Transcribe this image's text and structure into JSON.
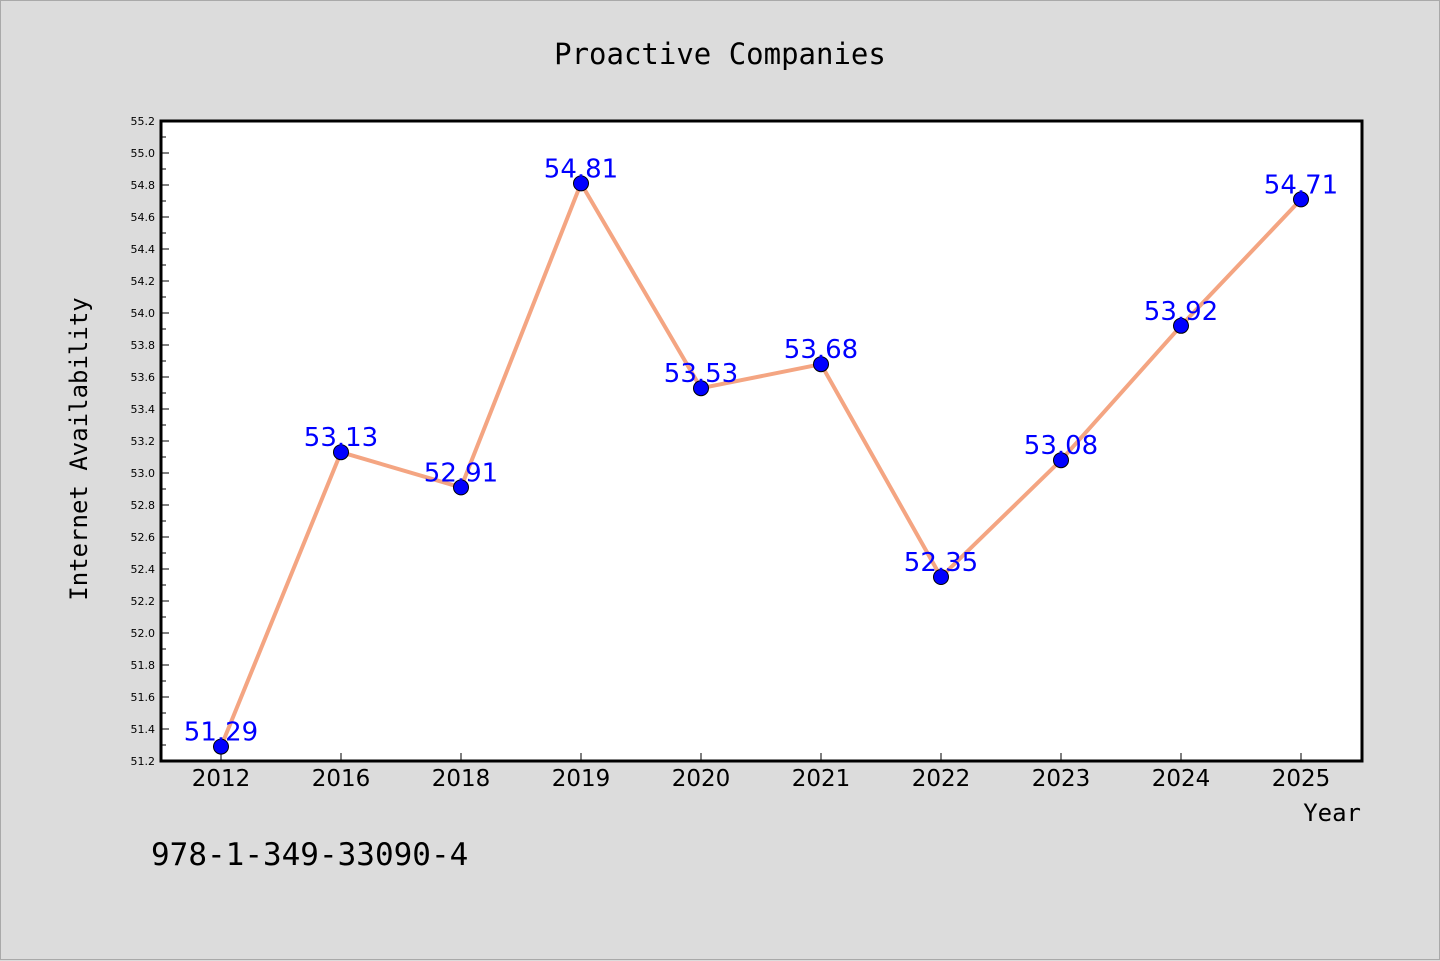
{
  "chart_data": {
    "type": "line",
    "title": "Proactive Companies",
    "xlabel": "Year",
    "ylabel": "Internet Availability",
    "categories": [
      "2012",
      "2016",
      "2018",
      "2019",
      "2020",
      "2021",
      "2022",
      "2023",
      "2024",
      "2025"
    ],
    "series": [
      {
        "values": [
          51.29,
          53.13,
          52.91,
          54.81,
          53.53,
          53.68,
          52.35,
          53.08,
          53.92,
          54.71
        ]
      }
    ],
    "data_labels": [
      "51.29",
      "53.13",
      "52.91",
      "54.81",
      "53.53",
      "53.68",
      "52.35",
      "53.08",
      "53.92",
      "54.71"
    ],
    "ylim": [
      51.2,
      55.2
    ],
    "yticks": [
      "51.2",
      "51.4",
      "51.6",
      "51.8",
      "52.0",
      "52.2",
      "52.4",
      "52.6",
      "52.8",
      "53.0",
      "53.2",
      "53.4",
      "53.6",
      "53.8",
      "54.0",
      "54.2",
      "54.4",
      "54.6",
      "54.8",
      "55.0",
      "55.2"
    ],
    "grid": false,
    "legend": "none",
    "colors": {
      "line": "#f4a582",
      "marker": "#0000ff",
      "label": "#0000ff",
      "background": "#dcdcdc",
      "plot_area": "#ffffff"
    }
  },
  "annotation": "978-1-349-33090-4"
}
